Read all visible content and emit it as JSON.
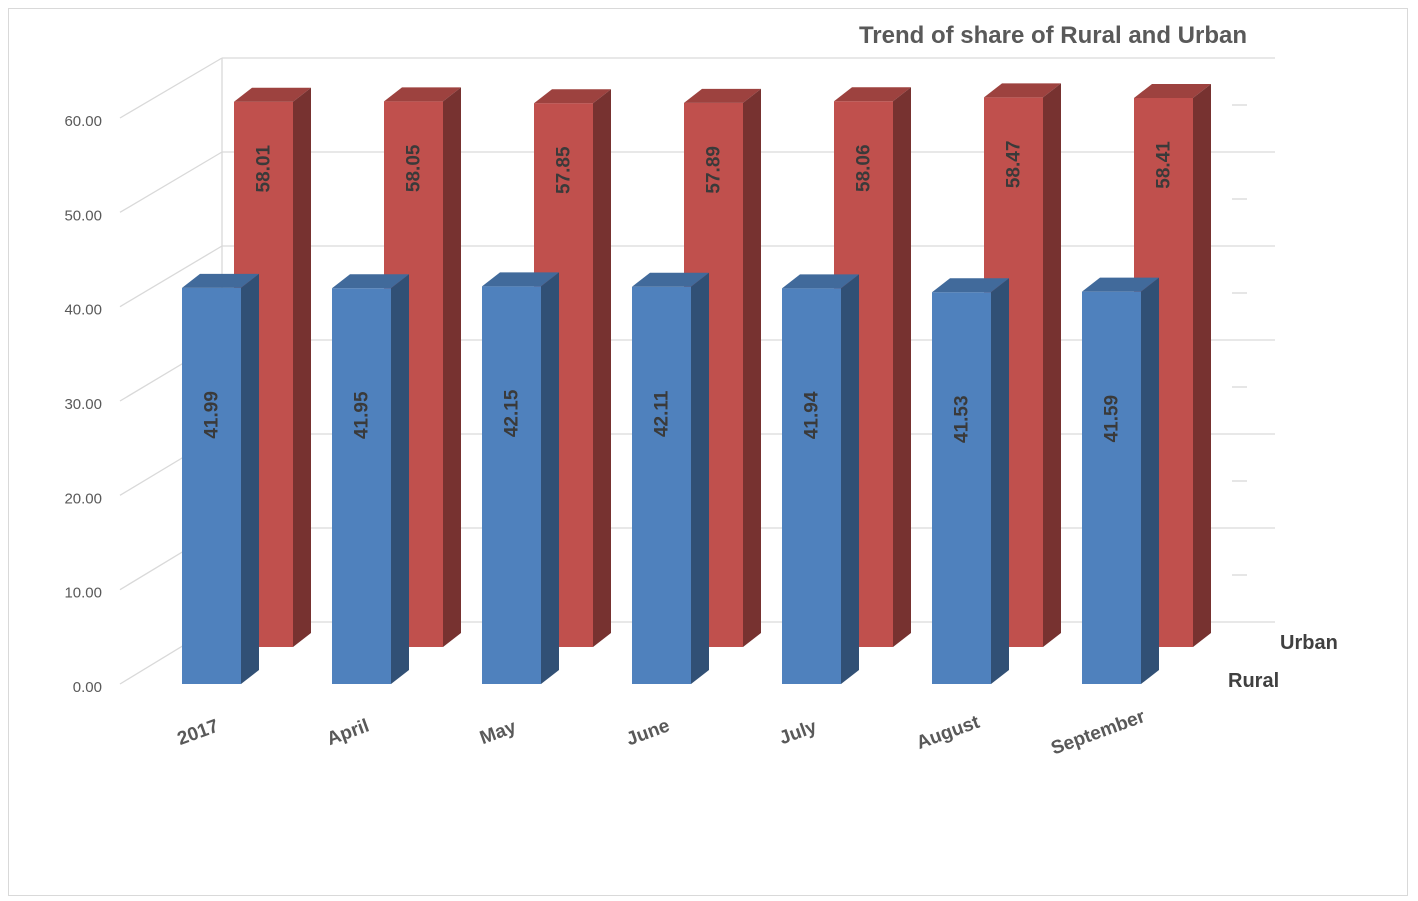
{
  "chart_data": {
    "type": "bar",
    "subtype": "3d-column",
    "title": "Trend of  share of Rural and Urban",
    "categories": [
      "2017",
      "April",
      "May",
      "June",
      "July",
      "August",
      "September"
    ],
    "series": [
      {
        "name": "Rural",
        "values": [
          41.99,
          41.95,
          42.15,
          42.11,
          41.94,
          41.53,
          41.59
        ],
        "color": "#4F81BD"
      },
      {
        "name": "Urban",
        "values": [
          58.01,
          58.05,
          57.85,
          57.89,
          58.06,
          58.47,
          58.41
        ],
        "color": "#C0504D"
      }
    ],
    "yticks": [
      "0.00",
      "10.00",
      "20.00",
      "30.00",
      "40.00",
      "50.00",
      "60.00"
    ],
    "ylim": [
      0,
      60
    ],
    "grid": true,
    "data_labels": true
  }
}
